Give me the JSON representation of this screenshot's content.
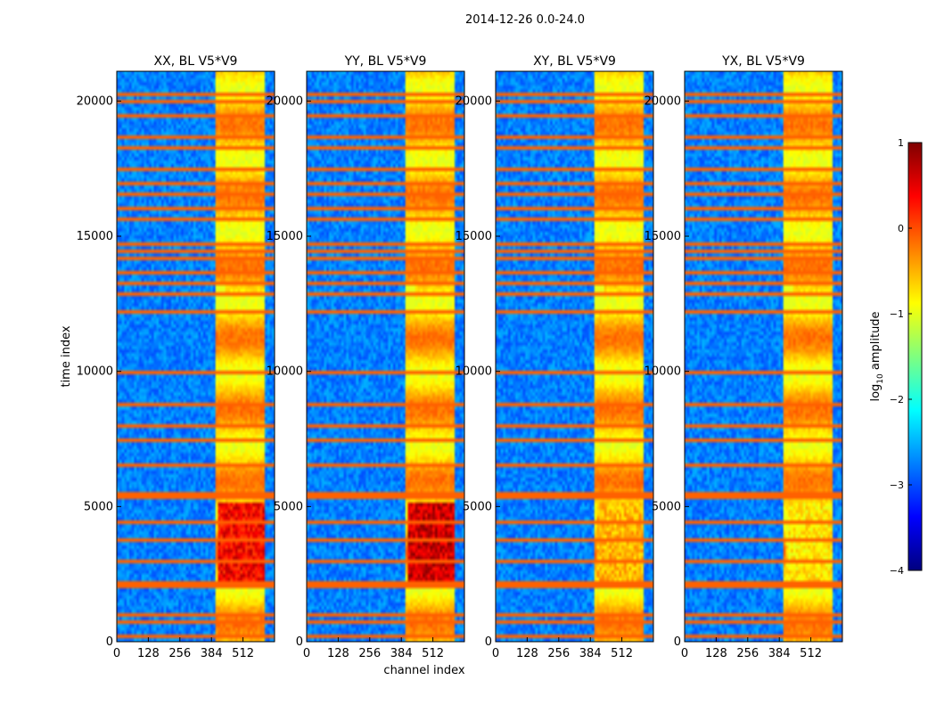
{
  "chart_data": {
    "type": "heatmap",
    "suptitle": "2014-12-26 0.0-24.0",
    "xlabel": "channel index",
    "ylabel": "time index",
    "xlim": [
      0,
      640
    ],
    "ylim": [
      0,
      21100
    ],
    "xticks": [
      0,
      128,
      256,
      384,
      512
    ],
    "yticks": [
      0,
      5000,
      10000,
      15000,
      20000
    ],
    "panels": [
      {
        "title": "XX, BL V5*V9",
        "polarization": "XX",
        "source_ch": 400,
        "core_peak": 0.95
      },
      {
        "title": "YY, BL V5*V9",
        "polarization": "YY",
        "source_ch": 400,
        "core_peak": 1.0
      },
      {
        "title": "XY, BL V5*V9",
        "polarization": "XY",
        "source_ch": 400,
        "core_peak": 0.75
      },
      {
        "title": "YX, BL V5*V9",
        "polarization": "YX",
        "source_ch": 400,
        "core_peak": 0.7
      }
    ],
    "band_edge_channels": [
      400,
      600
    ],
    "band_gap_channels": [
      440,
      480,
      520,
      560
    ],
    "flagged_time_rows": [
      200,
      700,
      1000,
      2000,
      2200,
      3000,
      3800,
      4400,
      5300,
      5500,
      6500,
      7500,
      8000,
      8800,
      9500,
      10000,
      12200,
      12900,
      13300,
      13700,
      14200,
      14500,
      14700,
      14900,
      15300,
      15600,
      16000,
      16500,
      17000,
      17500,
      17800,
      18300,
      18700,
      19500,
      20000,
      20300
    ],
    "colorbar": {
      "label": "log10 amplitude",
      "label_main": "log",
      "label_sub": "10",
      "label_rest": " amplitude",
      "colormap": "jet",
      "range": [
        -4,
        1
      ],
      "ticks": [
        1,
        0,
        -1,
        -2,
        -3,
        -4
      ],
      "tick_labels": [
        "1",
        "0",
        "−1",
        "−2",
        "−3",
        "−4"
      ]
    }
  }
}
